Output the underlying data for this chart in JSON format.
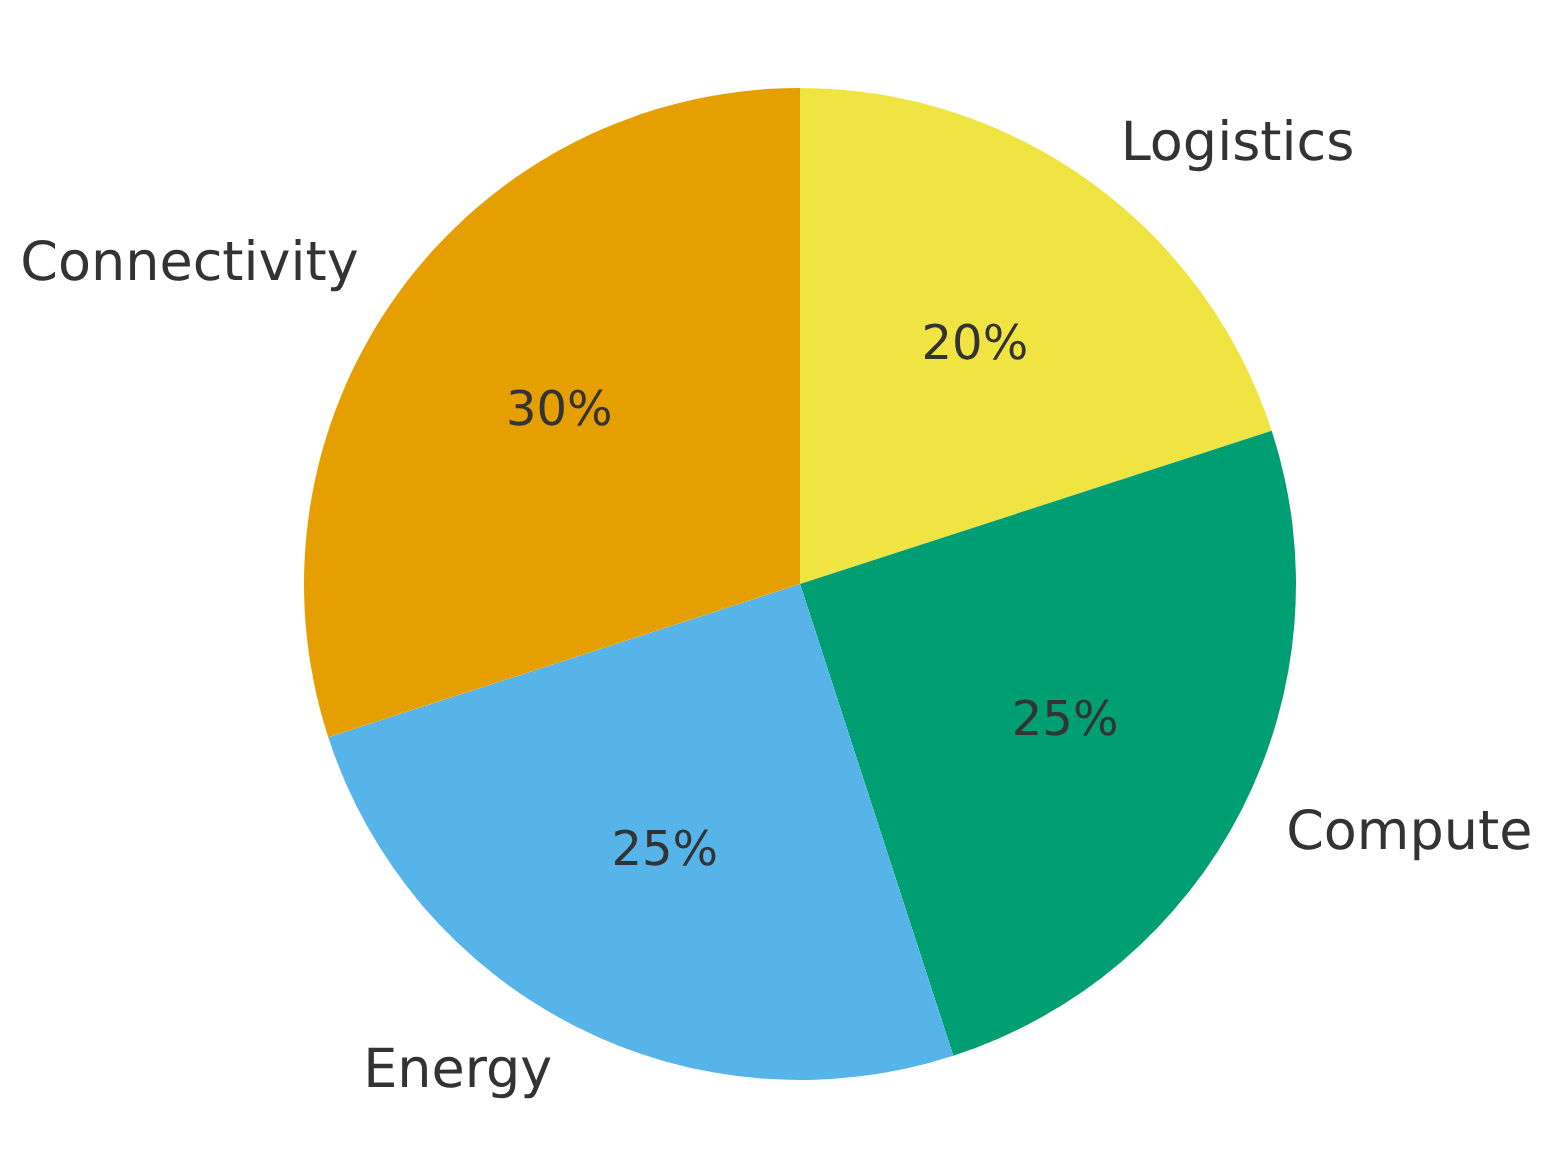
{
  "chart_data": {
    "type": "pie",
    "categories": [
      "Logistics",
      "Compute",
      "Energy",
      "Connectivity"
    ],
    "values": [
      20,
      25,
      25,
      30
    ],
    "colors": [
      "#f0e442",
      "#009e73",
      "#56b4e9",
      "#e69f00"
    ],
    "value_labels": [
      "20%",
      "25%",
      "25%",
      "30%"
    ],
    "data_labels": true
  }
}
